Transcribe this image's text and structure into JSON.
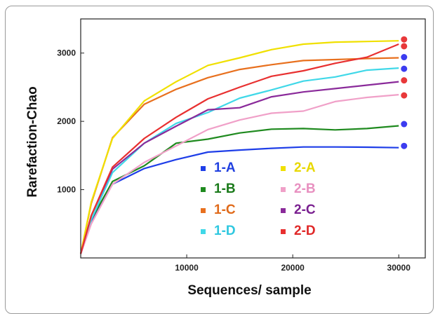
{
  "chart_data": {
    "type": "line",
    "xlabel": "Sequences/ sample",
    "ylabel": "Rarefaction-Chao",
    "xlim": [
      0,
      32500
    ],
    "ylim": [
      0,
      3500
    ],
    "xticks": [
      10000,
      20000,
      30000
    ],
    "yticks": [
      1000,
      2000,
      3000
    ],
    "grid": false,
    "legend_position": "center-bottom",
    "series": [
      {
        "name": "1-A",
        "color": "#1e3ee8",
        "label_color": "#2040e0",
        "end_marker_color": "#3c3cf0",
        "x": [
          0,
          1000,
          3000,
          6000,
          9000,
          12000,
          15000,
          18000,
          21000,
          24000,
          27000,
          30000
        ],
        "y": [
          60,
          540,
          1080,
          1310,
          1440,
          1550,
          1580,
          1605,
          1625,
          1625,
          1622,
          1615
        ],
        "end_marker": 1640
      },
      {
        "name": "1-B",
        "color": "#1f8a1f",
        "label_color": "#1a7a1a",
        "end_marker_color": "#3c3cf0",
        "x": [
          0,
          1000,
          3000,
          6000,
          9000,
          12000,
          15000,
          18000,
          21000,
          24000,
          27000,
          30000
        ],
        "y": [
          60,
          560,
          1120,
          1350,
          1680,
          1740,
          1830,
          1885,
          1895,
          1875,
          1895,
          1935
        ],
        "end_marker": 1960
      },
      {
        "name": "1-C",
        "color": "#e8701e",
        "label_color": "#e06a1a",
        "end_marker_color": "#3c3cf0",
        "x": [
          0,
          1000,
          3000,
          6000,
          9000,
          12000,
          15000,
          18000,
          21000,
          24000,
          27000,
          30000
        ],
        "y": [
          60,
          800,
          1760,
          2250,
          2470,
          2640,
          2760,
          2830,
          2890,
          2905,
          2920,
          2930
        ],
        "end_marker": 2940
      },
      {
        "name": "1-D",
        "color": "#40d8e8",
        "label_color": "#2fc8e0",
        "end_marker_color": "#3c3cf0",
        "x": [
          0,
          1000,
          3000,
          6000,
          9000,
          12000,
          15000,
          18000,
          21000,
          24000,
          27000,
          30000
        ],
        "y": [
          60,
          560,
          1250,
          1680,
          1970,
          2130,
          2340,
          2460,
          2590,
          2650,
          2750,
          2780
        ],
        "end_marker": 2770
      },
      {
        "name": "2-A",
        "color": "#f0e000",
        "label_color": "#e8d800",
        "end_marker_color": "#e8383a",
        "x": [
          0,
          1000,
          3000,
          6000,
          9000,
          12000,
          15000,
          18000,
          21000,
          24000,
          27000,
          30000
        ],
        "y": [
          60,
          820,
          1750,
          2300,
          2580,
          2820,
          2930,
          3050,
          3130,
          3160,
          3170,
          3180
        ],
        "end_marker": 3200
      },
      {
        "name": "2-B",
        "color": "#f0a0c8",
        "label_color": "#e890c0",
        "end_marker_color": "#e8383a",
        "x": [
          0,
          1000,
          3000,
          6000,
          9000,
          12000,
          15000,
          18000,
          21000,
          24000,
          27000,
          30000
        ],
        "y": [
          60,
          500,
          1080,
          1400,
          1640,
          1880,
          2020,
          2120,
          2150,
          2290,
          2350,
          2390
        ],
        "end_marker": 2380
      },
      {
        "name": "2-C",
        "color": "#8a2a9a",
        "label_color": "#7a2090",
        "end_marker_color": "#e8383a",
        "x": [
          0,
          1000,
          3000,
          6000,
          9000,
          12000,
          15000,
          18000,
          21000,
          24000,
          27000,
          30000
        ],
        "y": [
          60,
          620,
          1300,
          1680,
          1930,
          2170,
          2200,
          2360,
          2430,
          2480,
          2530,
          2580
        ],
        "end_marker": 2600
      },
      {
        "name": "2-D",
        "color": "#e83030",
        "label_color": "#e02828",
        "end_marker_color": "#e8383a",
        "x": [
          0,
          1000,
          3000,
          6000,
          9000,
          12000,
          15000,
          18000,
          21000,
          24000,
          27000,
          30000
        ],
        "y": [
          60,
          620,
          1330,
          1750,
          2060,
          2330,
          2500,
          2660,
          2740,
          2850,
          2940,
          3130
        ],
        "end_marker": 3100
      }
    ]
  }
}
